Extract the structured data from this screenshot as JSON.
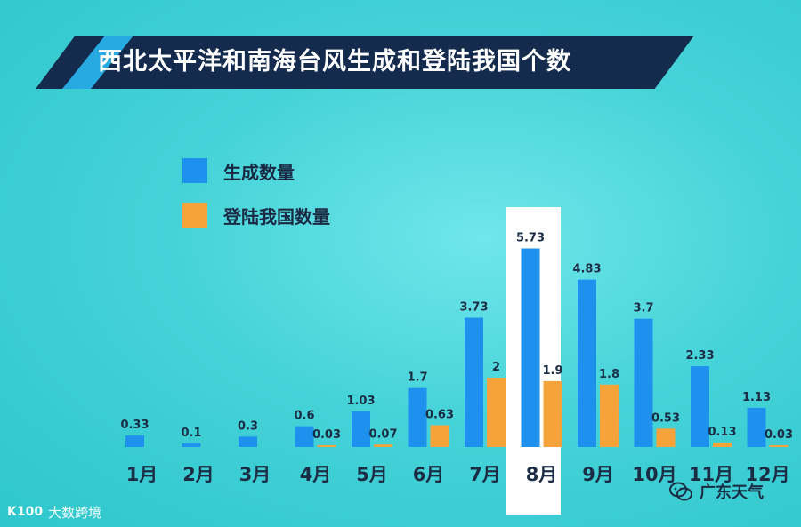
{
  "chart_data": {
    "type": "bar",
    "title": "西北太平洋和南海台风生成和登陆我国个数",
    "categories": [
      "1月",
      "2月",
      "3月",
      "4月",
      "5月",
      "6月",
      "7月",
      "8月",
      "9月",
      "10月",
      "11月",
      "12月"
    ],
    "series": [
      {
        "name": "生成数量",
        "values": [
          0.33,
          0.1,
          0.3,
          0.6,
          1.03,
          1.7,
          3.73,
          5.73,
          4.83,
          3.7,
          2.33,
          1.13
        ],
        "value_labels": [
          "0.33",
          "0.1",
          "0.3",
          "0.6",
          "1.03",
          "1.7",
          "3.73",
          "5.73",
          "4.83",
          "3.7",
          "2.33",
          "1.13"
        ]
      },
      {
        "name": "登陆我国数量",
        "values": [
          0,
          0,
          0,
          0.03,
          0.07,
          0.63,
          2,
          1.9,
          1.8,
          0.53,
          0.13,
          0.03
        ],
        "value_labels": [
          "",
          "",
          "",
          "0.03",
          "0.07",
          "0.63",
          "2",
          "1.9",
          "1.8",
          "0.53",
          "0.13",
          "0.03"
        ]
      }
    ],
    "highlight_category": "8月",
    "legend_position": "top-left",
    "grid": false,
    "ylim": [
      0,
      6
    ]
  },
  "colors": {
    "generated": "#1e90ee",
    "landed": "#f7a33c",
    "title_band": "#142b4d",
    "title_accent": "#27a9e1",
    "month_label": "#1b2c44",
    "highlight": "#ffffff"
  },
  "watermarks": {
    "left_logo": "K100",
    "left_text": "大数跨境",
    "right_icon": "wechat-icon",
    "right_text": "广东天气"
  }
}
